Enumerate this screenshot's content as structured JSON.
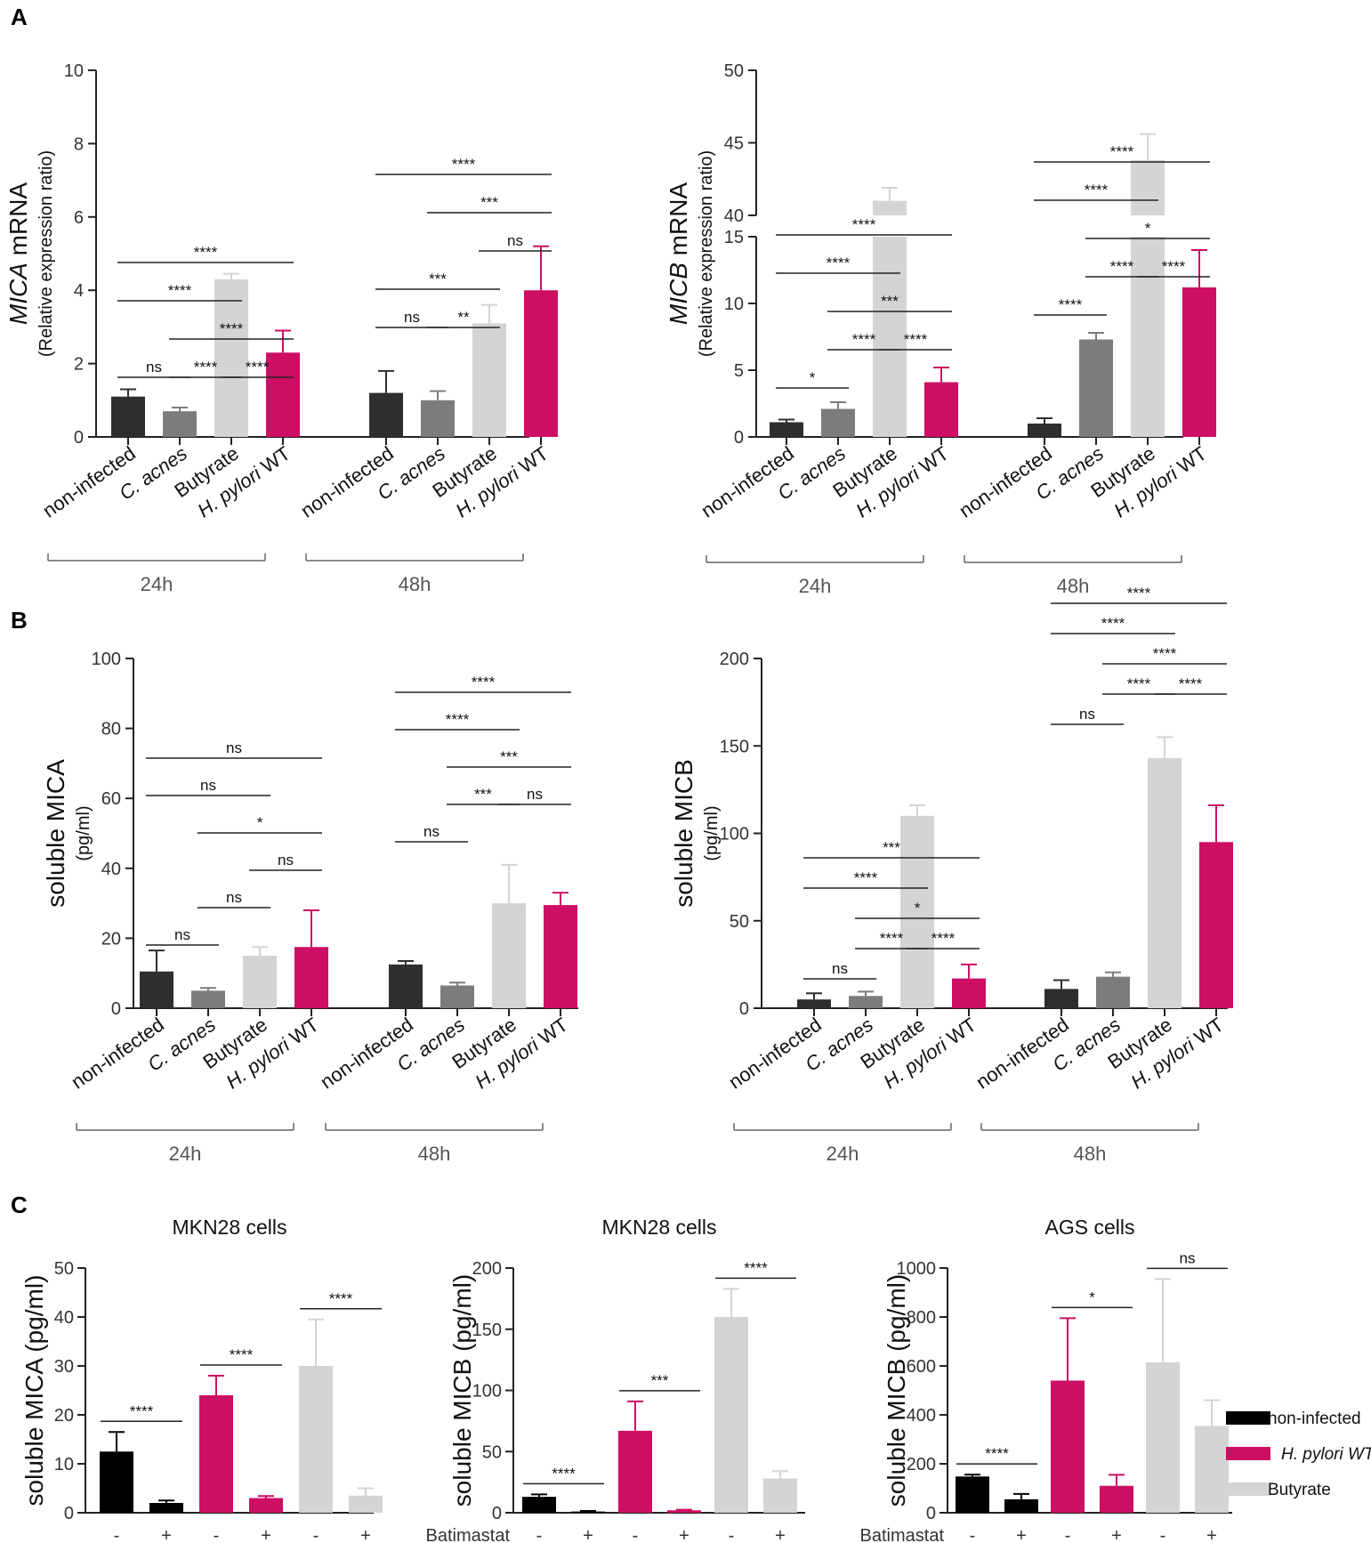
{
  "panel_labels": [
    "A",
    "B",
    "C"
  ],
  "colors": {
    "non_infected": "#2e2e2e",
    "c_acnes": "#7c7c7c",
    "butyrate": "#d4d4d4",
    "h_pylori": "#cc0f63",
    "c_noninfected": "#000000"
  },
  "group_labels": [
    "24h",
    "48h"
  ],
  "categories": [
    "non-infected",
    "C. acnes",
    "Butyrate",
    "H. pylori WT"
  ],
  "batimastat": {
    "label": "Batimastat",
    "minus": "-",
    "plus": "+"
  },
  "legend": {
    "items": [
      {
        "label": "non-infected",
        "key": "c_noninfected"
      },
      {
        "label": "H. pylori WT",
        "key": "h_pylori"
      },
      {
        "label": "Butyrate",
        "key": "butyrate"
      }
    ]
  },
  "chart_data": [
    {
      "id": "A_MICA",
      "type": "bar",
      "ylabel_main_italic": "MICA",
      "ylabel_main_rest": " mRNA",
      "ylabel_sub": "(Relative expression ratio)",
      "ylim": [
        0,
        10
      ],
      "yticks": [
        "0",
        "2",
        "4",
        "6",
        "8",
        "10"
      ],
      "groups": [
        "24h",
        "48h"
      ],
      "categories": [
        "non-infected",
        "C. acnes",
        "Butyrate",
        "H. pylori WT"
      ],
      "values": [
        [
          1.1,
          0.7,
          4.3,
          2.3
        ],
        [
          1.2,
          1.0,
          3.1,
          4.0
        ]
      ],
      "errors": [
        [
          0.2,
          0.1,
          0.15,
          0.6
        ],
        [
          0.6,
          0.25,
          0.5,
          1.2
        ]
      ],
      "significance": [
        {
          "g": 0,
          "a": 0,
          "b": 1,
          "label": "ns",
          "level": 0
        },
        {
          "g": 0,
          "a": 1,
          "b": 2,
          "label": "****",
          "level": 0
        },
        {
          "g": 0,
          "a": 2,
          "b": 3,
          "label": "****",
          "level": 0
        },
        {
          "g": 0,
          "a": 1,
          "b": 3,
          "label": "****",
          "level": 1
        },
        {
          "g": 0,
          "a": 0,
          "b": 2,
          "label": "****",
          "level": 2
        },
        {
          "g": 0,
          "a": 0,
          "b": 3,
          "label": "****",
          "level": 3
        },
        {
          "g": 1,
          "a": 0,
          "b": 1,
          "label": "ns",
          "level": 0
        },
        {
          "g": 1,
          "a": 1,
          "b": 2,
          "label": "**",
          "level": 0
        },
        {
          "g": 1,
          "a": 0,
          "b": 2,
          "label": "***",
          "level": 1
        },
        {
          "g": 1,
          "a": 2,
          "b": 3,
          "label": "ns",
          "level": 2
        },
        {
          "g": 1,
          "a": 1,
          "b": 3,
          "label": "***",
          "level": 3
        },
        {
          "g": 1,
          "a": 0,
          "b": 3,
          "label": "****",
          "level": 4
        }
      ]
    },
    {
      "id": "A_MICB",
      "type": "bar",
      "broken_axis": true,
      "ylabel_main_italic": "MICB",
      "ylabel_main_rest": " mRNA",
      "ylabel_sub": "(Relative expression ratio)",
      "ylim_lower": [
        0,
        15
      ],
      "ylim_upper": [
        40,
        50
      ],
      "yticks_lower": [
        "0",
        "5",
        "10",
        "15"
      ],
      "yticks_upper": [
        "40",
        "45",
        "50"
      ],
      "groups": [
        "24h",
        "48h"
      ],
      "categories": [
        "non-infected",
        "C. acnes",
        "Butyrate",
        "H. pylori WT"
      ],
      "values": [
        [
          1.1,
          2.1,
          41.0,
          4.1
        ],
        [
          1.0,
          7.3,
          43.8,
          11.2
        ]
      ],
      "errors": [
        [
          0.2,
          0.5,
          0.9,
          1.1
        ],
        [
          0.4,
          0.5,
          1.8,
          2.8
        ]
      ],
      "significance": [
        {
          "g": 0,
          "a": 0,
          "b": 1,
          "label": "*",
          "level": 0
        },
        {
          "g": 0,
          "a": 1,
          "b": 2,
          "label": "****",
          "level": 1
        },
        {
          "g": 0,
          "a": 2,
          "b": 3,
          "label": "****",
          "level": 1
        },
        {
          "g": 0,
          "a": 1,
          "b": 3,
          "label": "***",
          "level": 2
        },
        {
          "g": 0,
          "a": 0,
          "b": 2,
          "label": "****",
          "level": 3
        },
        {
          "g": 0,
          "a": 0,
          "b": 3,
          "label": "****",
          "level": 4
        },
        {
          "g": 1,
          "a": 0,
          "b": 1,
          "label": "****",
          "level": 0
        },
        {
          "g": 1,
          "a": 1,
          "b": 2,
          "label": "****",
          "level": 1
        },
        {
          "g": 1,
          "a": 2,
          "b": 3,
          "label": "****",
          "level": 1
        },
        {
          "g": 1,
          "a": 1,
          "b": 3,
          "label": "*",
          "level": 2
        },
        {
          "g": 1,
          "a": 0,
          "b": 2,
          "label": "****",
          "level": 3
        },
        {
          "g": 1,
          "a": 0,
          "b": 3,
          "label": "****",
          "level": 4
        }
      ]
    },
    {
      "id": "B_MICA",
      "type": "bar",
      "ylabel_main": "soluble MICA",
      "ylabel_sub": "(pg/ml)",
      "ylim": [
        0,
        100
      ],
      "yticks": [
        "0",
        "20",
        "40",
        "60",
        "80",
        "100"
      ],
      "groups": [
        "24h",
        "48h"
      ],
      "categories": [
        "non-infected",
        "C. acnes",
        "Butyrate",
        "H. pylori WT"
      ],
      "values": [
        [
          10.5,
          5.0,
          15.0,
          17.5
        ],
        [
          12.5,
          6.5,
          30.0,
          29.5
        ]
      ],
      "errors": [
        [
          6.0,
          0.8,
          2.5,
          10.5
        ],
        [
          1.0,
          0.8,
          11.0,
          3.5
        ]
      ],
      "significance": [
        {
          "g": 0,
          "a": 0,
          "b": 1,
          "label": "ns",
          "level": 0
        },
        {
          "g": 0,
          "a": 1,
          "b": 2,
          "label": "ns",
          "level": 1
        },
        {
          "g": 0,
          "a": 2,
          "b": 3,
          "label": "ns",
          "level": 2
        },
        {
          "g": 0,
          "a": 1,
          "b": 3,
          "label": "*",
          "level": 3
        },
        {
          "g": 0,
          "a": 0,
          "b": 2,
          "label": "ns",
          "level": 4
        },
        {
          "g": 0,
          "a": 0,
          "b": 3,
          "label": "ns",
          "level": 5
        },
        {
          "g": 1,
          "a": 0,
          "b": 1,
          "label": "ns",
          "level": 0
        },
        {
          "g": 1,
          "a": 1,
          "b": 2,
          "label": "***",
          "level": 1
        },
        {
          "g": 1,
          "a": 2,
          "b": 3,
          "label": "ns",
          "level": 1
        },
        {
          "g": 1,
          "a": 1,
          "b": 3,
          "label": "***",
          "level": 2
        },
        {
          "g": 1,
          "a": 0,
          "b": 2,
          "label": "****",
          "level": 3
        },
        {
          "g": 1,
          "a": 0,
          "b": 3,
          "label": "****",
          "level": 4
        }
      ]
    },
    {
      "id": "B_MICB",
      "type": "bar",
      "ylabel_main": "soluble MICB",
      "ylabel_sub": "(pg/ml)",
      "ylim": [
        0,
        200
      ],
      "yticks": [
        "0",
        "50",
        "100",
        "150",
        "200"
      ],
      "groups": [
        "24h",
        "48h"
      ],
      "categories": [
        "non-infected",
        "C. acnes",
        "Butyrate",
        "H. pylori WT"
      ],
      "values": [
        [
          5,
          7,
          110,
          17
        ],
        [
          11,
          18,
          143,
          95
        ]
      ],
      "errors": [
        [
          3.5,
          2.5,
          6,
          8
        ],
        [
          5,
          2.5,
          12,
          21
        ]
      ],
      "significance": [
        {
          "g": 0,
          "a": 0,
          "b": 1,
          "label": "ns",
          "level": 0
        },
        {
          "g": 0,
          "a": 1,
          "b": 2,
          "label": "****",
          "level": 1
        },
        {
          "g": 0,
          "a": 2,
          "b": 3,
          "label": "****",
          "level": 1
        },
        {
          "g": 0,
          "a": 1,
          "b": 3,
          "label": "*",
          "level": 2
        },
        {
          "g": 0,
          "a": 0,
          "b": 2,
          "label": "****",
          "level": 3
        },
        {
          "g": 0,
          "a": 0,
          "b": 3,
          "label": "***",
          "level": 4
        },
        {
          "g": 1,
          "a": 0,
          "b": 1,
          "label": "ns",
          "level": 0
        },
        {
          "g": 1,
          "a": 1,
          "b": 2,
          "label": "****",
          "level": 1
        },
        {
          "g": 1,
          "a": 2,
          "b": 3,
          "label": "****",
          "level": 1
        },
        {
          "g": 1,
          "a": 1,
          "b": 3,
          "label": "****",
          "level": 2
        },
        {
          "g": 1,
          "a": 0,
          "b": 2,
          "label": "****",
          "level": 3
        },
        {
          "g": 1,
          "a": 0,
          "b": 3,
          "label": "****",
          "level": 4
        }
      ]
    },
    {
      "id": "C1",
      "type": "bar",
      "title": "MKN28 cells",
      "ylabel": "soluble MICA (pg/ml)",
      "ylim": [
        0,
        50
      ],
      "yticks": [
        "0",
        "10",
        "20",
        "30",
        "40",
        "50"
      ],
      "conditions": [
        "non_infected",
        "h_pylori",
        "butyrate"
      ],
      "batimastat": [
        "-",
        "+"
      ],
      "values": [
        [
          12.5,
          2.0
        ],
        [
          24.0,
          3.0
        ],
        [
          30.0,
          3.5
        ]
      ],
      "errors": [
        [
          4.0,
          0.5
        ],
        [
          4.0,
          0.4
        ],
        [
          9.5,
          1.5
        ]
      ],
      "significance": [
        {
          "c": 0,
          "label": "****"
        },
        {
          "c": 1,
          "label": "****"
        },
        {
          "c": 2,
          "label": "****"
        }
      ]
    },
    {
      "id": "C2",
      "type": "bar",
      "title": "MKN28 cells",
      "ylabel": "soluble MICB (pg/ml)",
      "ylim": [
        0,
        200
      ],
      "yticks": [
        "0",
        "50",
        "100",
        "150",
        "200"
      ],
      "conditions": [
        "non_infected",
        "h_pylori",
        "butyrate"
      ],
      "batimastat": [
        "-",
        "+"
      ],
      "values": [
        [
          13,
          1
        ],
        [
          67,
          2
        ],
        [
          160,
          28
        ]
      ],
      "errors": [
        [
          2,
          0.5
        ],
        [
          24,
          0.5
        ],
        [
          23,
          6
        ]
      ],
      "significance": [
        {
          "c": 0,
          "label": "****"
        },
        {
          "c": 1,
          "label": "***"
        },
        {
          "c": 2,
          "label": "****"
        }
      ]
    },
    {
      "id": "C3",
      "type": "bar",
      "title": "AGS cells",
      "ylabel": "soluble MICB (pg/ml)",
      "ylim": [
        0,
        1000
      ],
      "yticks": [
        "0",
        "200",
        "400",
        "600",
        "800",
        "1000"
      ],
      "conditions": [
        "non_infected",
        "h_pylori",
        "butyrate"
      ],
      "batimastat": [
        "-",
        "+"
      ],
      "values": [
        [
          148,
          55
        ],
        [
          540,
          110
        ],
        [
          615,
          355
        ]
      ],
      "errors": [
        [
          8,
          22
        ],
        [
          255,
          45
        ],
        [
          340,
          105
        ]
      ],
      "significance": [
        {
          "c": 0,
          "label": "****"
        },
        {
          "c": 1,
          "label": "*"
        },
        {
          "c": 2,
          "label": "ns"
        }
      ]
    }
  ]
}
